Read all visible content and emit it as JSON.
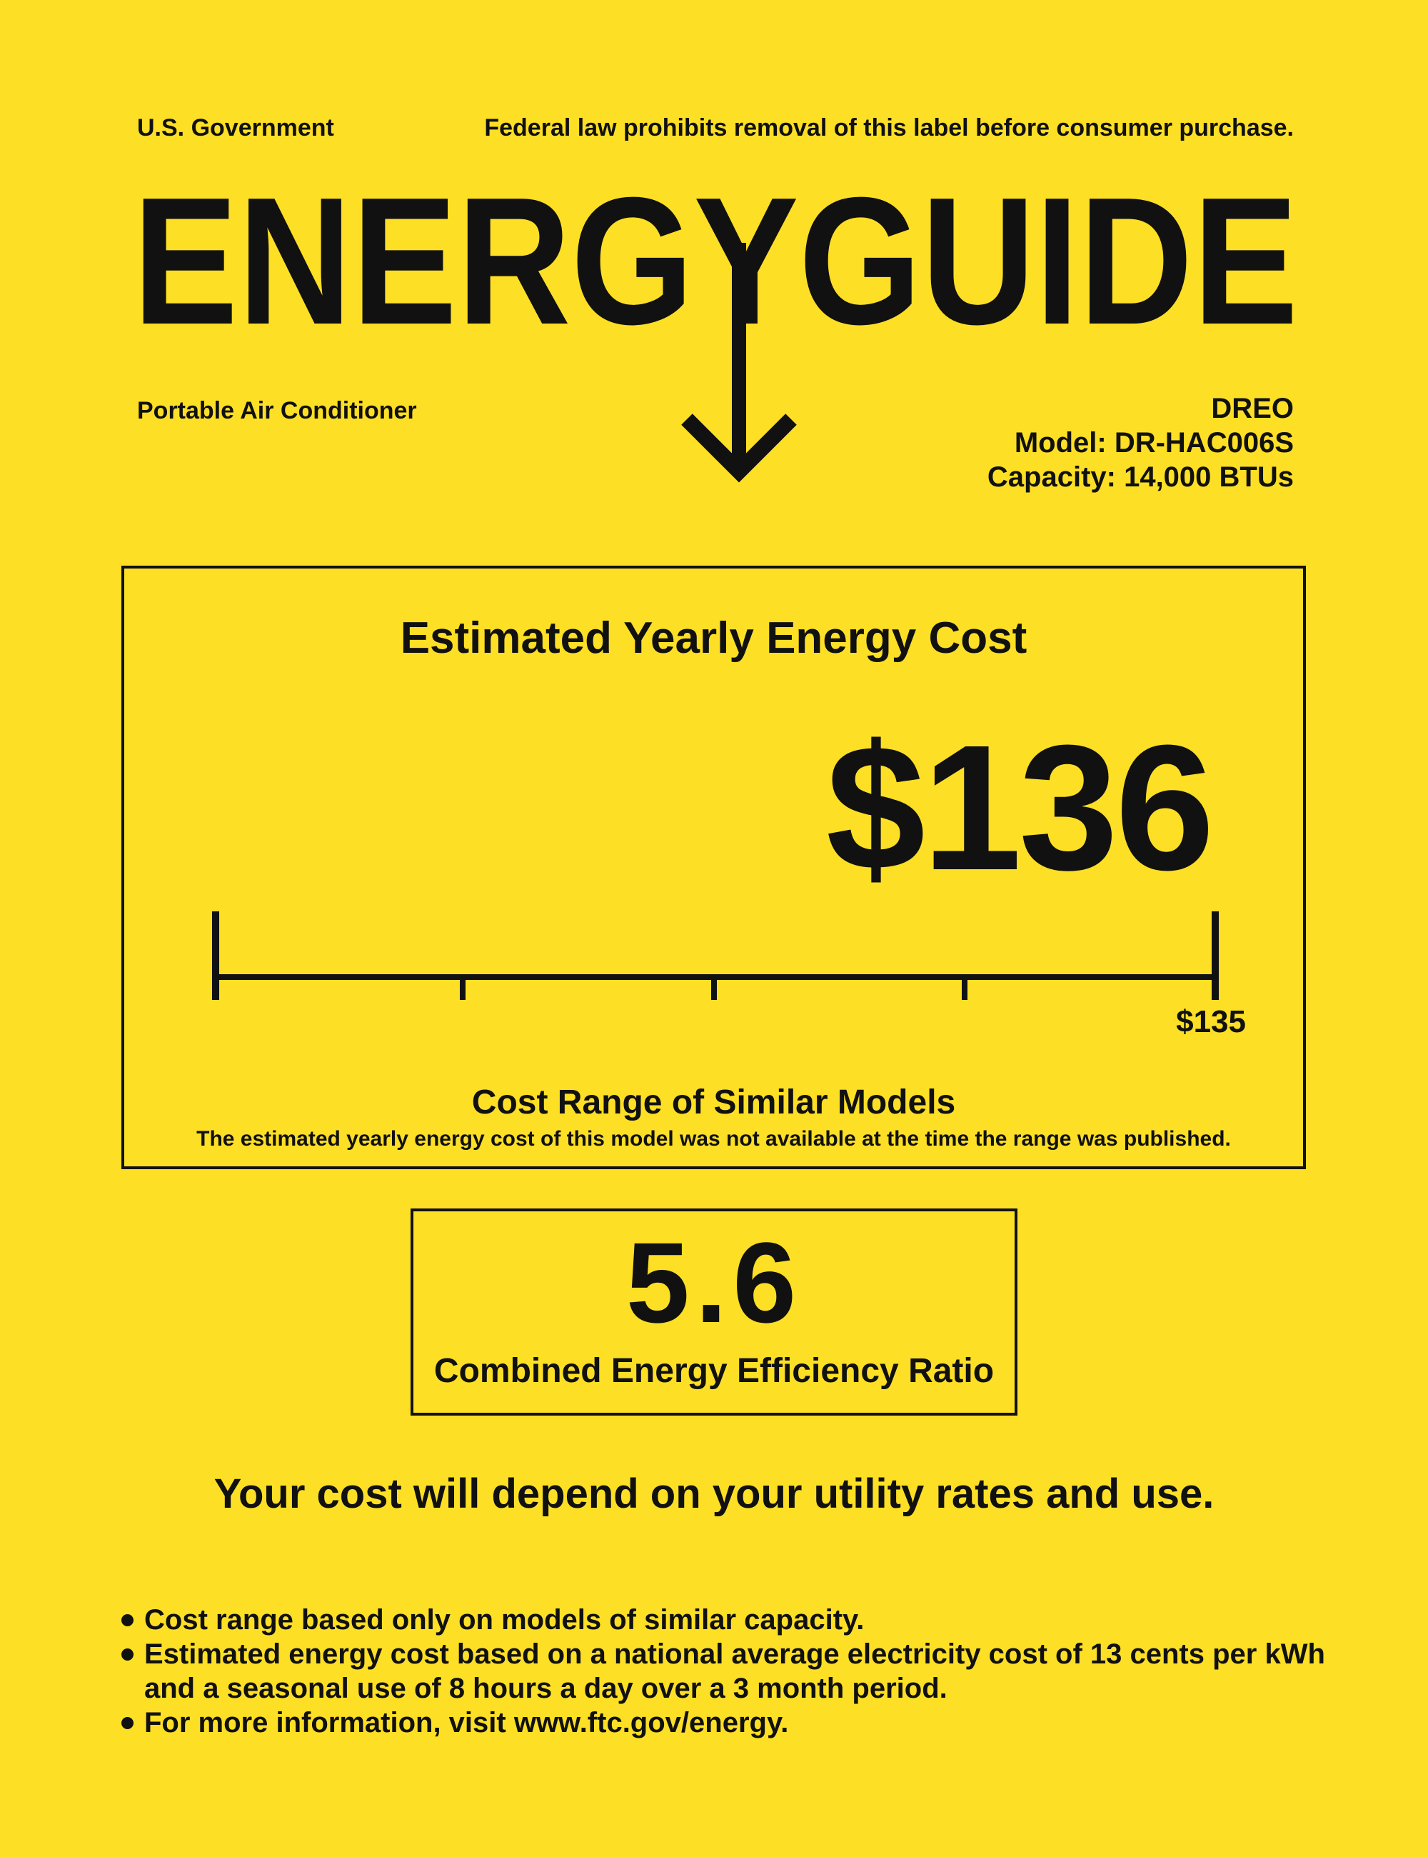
{
  "header": {
    "issuer": "U.S. Government",
    "notice": "Federal law prohibits removal of this label before consumer purchase.",
    "brand_title": "ENERGYGUIDE"
  },
  "appliance": {
    "type": "Portable Air Conditioner",
    "manufacturer": "DREO",
    "model": "Model: DR-HAC006S",
    "capacity": "Capacity: 14,000 BTUs"
  },
  "cost": {
    "title": "Estimated Yearly Energy Cost",
    "value": "$136",
    "scale_max_label": "$135",
    "range_title": "Cost Range of Similar Models",
    "range_note": "The estimated yearly energy cost of this model was not available at the time the range was published."
  },
  "efficiency": {
    "value": "5.6",
    "label": "Combined Energy Efficiency Ratio"
  },
  "disclaimer": "Your cost will depend on your utility rates and use.",
  "notes": [
    "Cost range based only on models of similar capacity.",
    "Estimated energy cost based on a national average electricity cost of 13 cents per kWh and a seasonal use of 8 hours a day over a 3 month period.",
    "For more information, visit www.ftc.gov/energy."
  ],
  "colors": {
    "background": "#FDDF25",
    "ink": "#111111"
  },
  "icons": {
    "pointer": "down-arrow-icon"
  }
}
